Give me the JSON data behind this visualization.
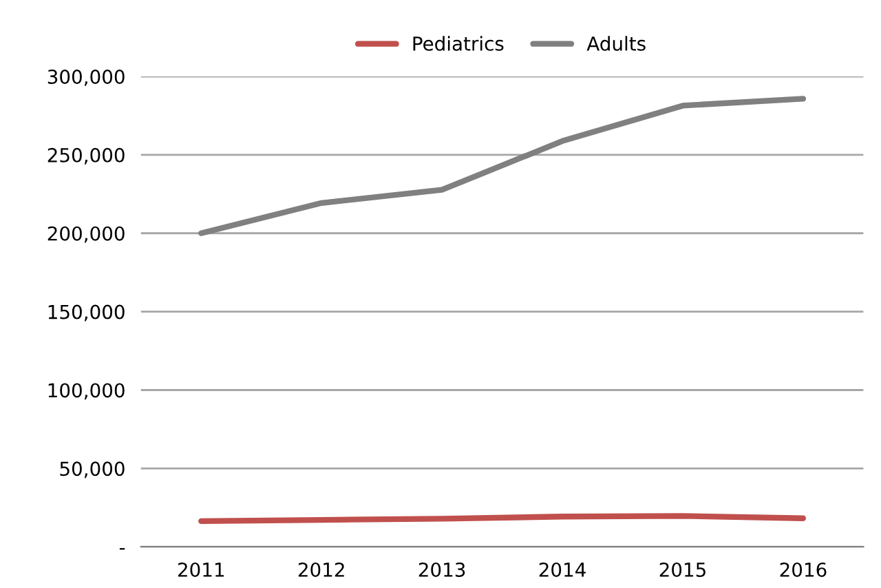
{
  "chart_data": {
    "type": "line",
    "categories": [
      "2011",
      "2012",
      "2013",
      "2014",
      "2015",
      "2016"
    ],
    "series": [
      {
        "name": "Pediatrics",
        "color": "#c0504d",
        "values": [
          16400,
          17200,
          17900,
          19300,
          19700,
          18200
        ]
      },
      {
        "name": "Adults",
        "color": "#808080",
        "values": [
          200000,
          219300,
          227700,
          258800,
          281400,
          285800
        ]
      }
    ],
    "ylim": [
      0,
      300000
    ],
    "yticks": [
      {
        "value": 0,
        "label": "-"
      },
      {
        "value": 50000,
        "label": "50,000"
      },
      {
        "value": 100000,
        "label": "100,000"
      },
      {
        "value": 150000,
        "label": "150,000"
      },
      {
        "value": 200000,
        "label": "200,000"
      },
      {
        "value": 250000,
        "label": "250,000"
      },
      {
        "value": 300000,
        "label": "300,000"
      }
    ],
    "grid": "y",
    "legend": "top",
    "marker": "none",
    "line_style": "solid"
  }
}
